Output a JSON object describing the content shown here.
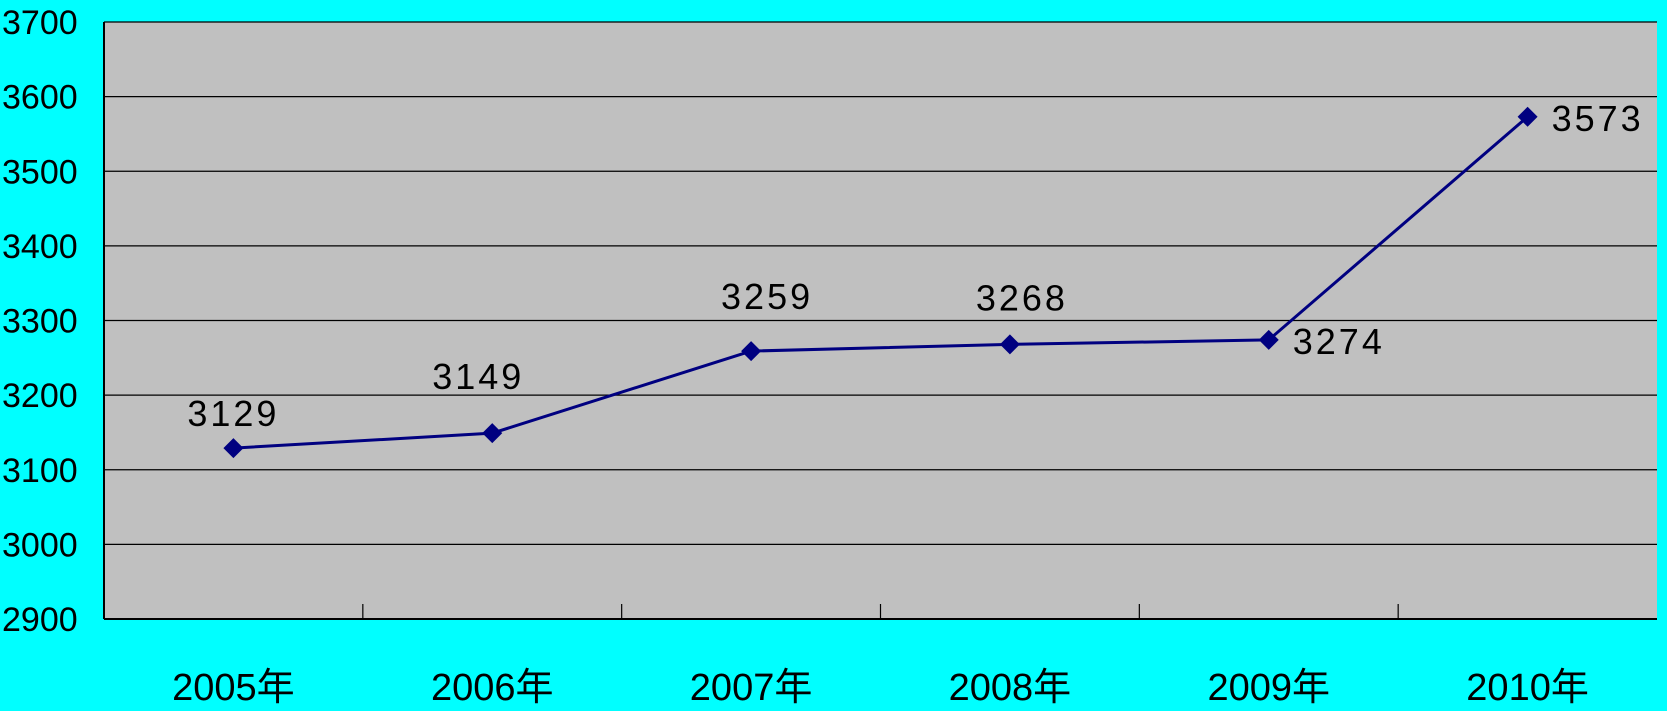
{
  "chart_data": {
    "type": "line",
    "title": "",
    "xlabel": "",
    "ylabel": "",
    "categories": [
      "2005年",
      "2006年",
      "2007年",
      "2008年",
      "2009年",
      "2010年"
    ],
    "series": [
      {
        "values": [
          3129,
          3149,
          3259,
          3268,
          3274,
          3573
        ],
        "data_labels": [
          "3129",
          "3149",
          "3259",
          "3268",
          "3274",
          "3573"
        ]
      }
    ],
    "ylim": [
      2900,
      3700
    ],
    "yticks": [
      "2900",
      "3000",
      "3100",
      "3200",
      "3300",
      "3400",
      "3500",
      "3600",
      "3700"
    ],
    "grid": true,
    "legend": "none",
    "colors": {
      "page_background": "#00FFFF",
      "plot_background": "#C0C0C0",
      "series_line": "#000080",
      "marker": "#000080",
      "gridline": "#000000"
    },
    "marker": "diamond"
  }
}
